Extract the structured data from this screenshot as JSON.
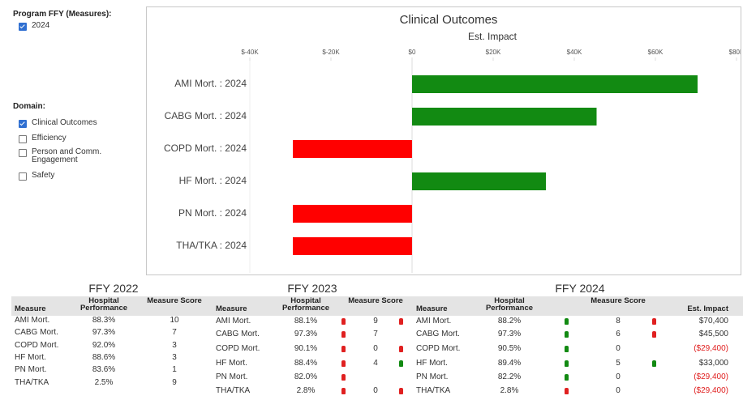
{
  "filters": [
    {
      "title": "Program FFY (Measures):",
      "options": [
        {
          "label": "2024",
          "checked": true
        }
      ]
    },
    {
      "title": "Domain:",
      "options": [
        {
          "label": "Clinical Outcomes",
          "checked": true
        },
        {
          "label": "Efficiency",
          "checked": false
        },
        {
          "label": "Person and Comm. Engagement",
          "checked": false
        },
        {
          "label": "Safety",
          "checked": false
        }
      ]
    }
  ],
  "chart_data": {
    "type": "hbar",
    "title": "Clinical Outcomes",
    "x_label": "Est. Impact",
    "categories": [
      "AMI Mort. : 2024",
      "CABG Mort. : 2024",
      "COPD Mort. : 2024",
      "HF Mort. : 2024",
      "PN Mort. : 2024",
      "THA/TKA : 2024"
    ],
    "values": [
      70400,
      45500,
      -29400,
      33000,
      -29400,
      -29400
    ],
    "colors": [
      "#128a12",
      "#128a12",
      "#ff0000",
      "#128a12",
      "#ff0000",
      "#ff0000"
    ],
    "xlim": [
      -40000,
      80000
    ],
    "xticks": [
      {
        "value": -40000,
        "label": "$-40K"
      },
      {
        "value": -20000,
        "label": "$-20K"
      },
      {
        "value": 0,
        "label": "$0"
      },
      {
        "value": 20000,
        "label": "$20K"
      },
      {
        "value": 40000,
        "label": "$40K"
      },
      {
        "value": 60000,
        "label": "$60K"
      },
      {
        "value": 80000,
        "label": "$80K"
      }
    ]
  },
  "tables": [
    {
      "title": "FFY 2022",
      "columns": [
        "Measure",
        "Hospital Performance",
        "Measure Score"
      ],
      "rows": [
        [
          "AMI Mort.",
          "88.3%",
          "10"
        ],
        [
          "CABG Mort.",
          "97.3%",
          "7"
        ],
        [
          "COPD Mort.",
          "92.0%",
          "3"
        ],
        [
          "HF Mort.",
          "88.6%",
          "3"
        ],
        [
          "PN Mort.",
          "83.6%",
          "1"
        ],
        [
          "THA/TKA",
          "2.5%",
          "9"
        ]
      ]
    },
    {
      "title": "FFY 2023",
      "columns": [
        "Measure",
        "Hospital Performance",
        "Measure Score"
      ],
      "rows": [
        [
          "AMI Mort.",
          "88.1%",
          "9"
        ],
        [
          "CABG Mort.",
          "97.3%",
          "7"
        ],
        [
          "COPD Mort.",
          "90.1%",
          "0"
        ],
        [
          "HF Mort.",
          "88.4%",
          "4"
        ],
        [
          "PN Mort.",
          "82.0%",
          null
        ],
        [
          "THA/TKA",
          "2.8%",
          "0"
        ]
      ],
      "icons": [
        [
          "#e02020",
          "#e02020"
        ],
        [
          "#e02020",
          null
        ],
        [
          "#e02020",
          "#e02020"
        ],
        [
          "#e02020",
          "#128a12"
        ],
        [
          "#e02020",
          null
        ],
        [
          "#e02020",
          "#e02020"
        ]
      ]
    },
    {
      "title": "FFY 2024",
      "columns": [
        "Measure",
        "Hospital Performance",
        "Measure Score",
        "Est. Impact"
      ],
      "rows": [
        [
          "AMI Mort.",
          "88.2%",
          "8",
          "$70,400"
        ],
        [
          "CABG Mort.",
          "97.3%",
          "6",
          "$45,500"
        ],
        [
          "COPD Mort.",
          "90.5%",
          "0",
          "($29,400)"
        ],
        [
          "HF Mort.",
          "89.4%",
          "5",
          "$33,000"
        ],
        [
          "PN Mort.",
          "82.2%",
          "0",
          "($29,400)"
        ],
        [
          "THA/TKA",
          "2.8%",
          "0",
          "($29,400)"
        ]
      ],
      "icons": [
        [
          "#128a12",
          "#e02020"
        ],
        [
          "#128a12",
          "#e02020"
        ],
        [
          "#128a12",
          null
        ],
        [
          "#128a12",
          "#128a12"
        ],
        [
          "#128a12",
          null
        ],
        [
          "#e02020",
          null
        ]
      ]
    }
  ]
}
